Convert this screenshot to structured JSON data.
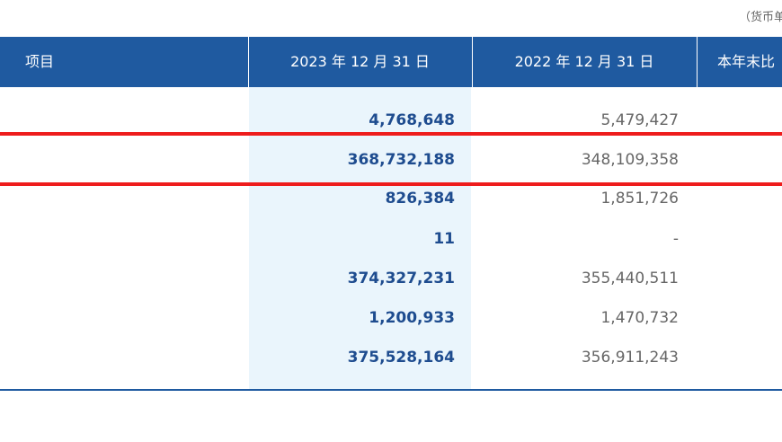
{
  "currency_note": "（货币单",
  "header": {
    "item": "项目",
    "col_2023": "2023 年 12 月 31 日",
    "col_2022": "2022 年 12 月 31 日",
    "col_change": "本年末比"
  },
  "rows": [
    {
      "v2023": "4,768,648",
      "v2022": "5,479,427"
    },
    {
      "v2023": "368,732,188",
      "v2022": "348,109,358"
    },
    {
      "v2023": "826,384",
      "v2022": "1,851,726"
    },
    {
      "v2023": "11",
      "v2022": "-"
    },
    {
      "v2023": "374,327,231",
      "v2022": "355,440,511"
    },
    {
      "v2023": "1,200,933",
      "v2022": "1,470,732"
    },
    {
      "v2023": "375,528,164",
      "v2022": "356,911,243"
    }
  ],
  "colors": {
    "header_bg": "#1f5aa0",
    "highlight_2023_col": "#eaf5fc",
    "value_2023": "#1e4c8f",
    "value_2022": "#666666",
    "annotation_red": "#ee1c1c"
  }
}
